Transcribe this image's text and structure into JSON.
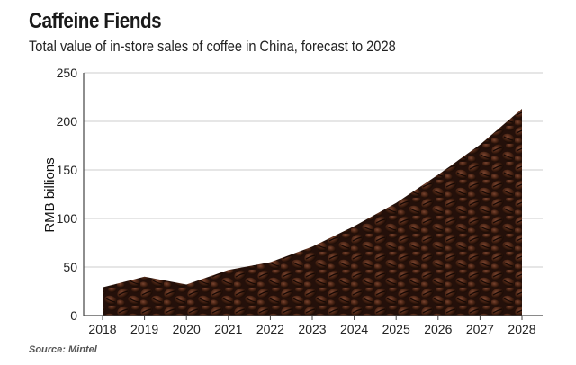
{
  "title": "Caffeine Fiends",
  "subtitle": "Total value of in-store sales of coffee in China, forecast to 2028",
  "source": "Source: Mintel",
  "colors": {
    "fill_dark": "#2a140b",
    "fill_mid": "#5a3020",
    "grid": "#cccccc",
    "axis": "#444444"
  },
  "chart_data": {
    "type": "area",
    "x": [
      "2018",
      "2019",
      "2020",
      "2021",
      "2022",
      "2023",
      "2024",
      "2025",
      "2026",
      "2027",
      "2028"
    ],
    "series": [
      {
        "values": [
          29,
          40,
          32,
          47,
          55,
          71,
          92,
          116,
          145,
          176,
          213
        ]
      }
    ],
    "ylabel": "RMB billions",
    "xlabel": "",
    "yticks": [
      "0",
      "50",
      "100",
      "150",
      "200",
      "250"
    ],
    "ylim": [
      0,
      250
    ],
    "grid": true,
    "legend": "none"
  }
}
